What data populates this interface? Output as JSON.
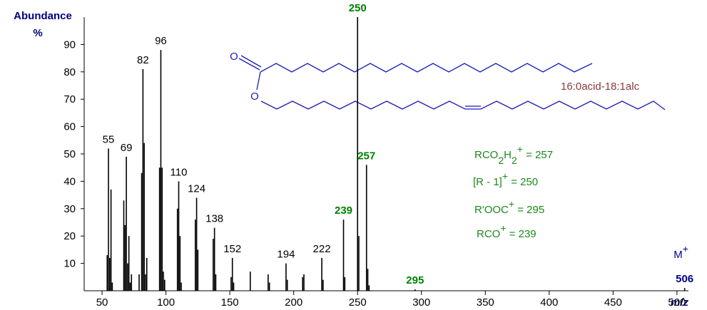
{
  "chart_data": {
    "type": "spectrum",
    "y_label": "Abundance",
    "y_unit": "%",
    "x_label": "m/z",
    "xlim": [
      36,
      509
    ],
    "xticks": [
      50,
      100,
      150,
      200,
      250,
      300,
      350,
      400,
      450,
      500
    ],
    "ylim": [
      0,
      100
    ],
    "yticks": [
      10,
      20,
      30,
      40,
      50,
      60,
      70,
      80,
      90
    ],
    "color": "#000000",
    "x": [
      54,
      55,
      56,
      57,
      58,
      67,
      68,
      69,
      70,
      71,
      72,
      73,
      79,
      81,
      82,
      83,
      84,
      85,
      95,
      96,
      97,
      98,
      99,
      109,
      110,
      111,
      112,
      123,
      124,
      125,
      137,
      138,
      139,
      151,
      152,
      153,
      166,
      180,
      181,
      194,
      195,
      207,
      208,
      222,
      223,
      239,
      240,
      250,
      251,
      257,
      258,
      259,
      295,
      506
    ],
    "values": [
      13,
      52,
      12,
      37,
      3,
      33,
      24,
      49,
      10,
      20,
      3,
      6,
      6,
      43,
      81,
      54,
      6,
      12,
      45,
      88,
      45,
      7,
      4,
      30,
      40,
      20,
      3,
      26,
      34,
      15,
      19,
      23,
      6,
      5,
      12,
      3,
      7,
      6,
      3,
      10,
      4,
      5,
      6,
      12,
      4,
      26,
      5,
      100,
      20,
      46,
      8,
      2,
      0.5,
      1
    ],
    "label_colors": [
      null,
      "#000000",
      null,
      null,
      null,
      null,
      null,
      "#000000",
      null,
      null,
      null,
      null,
      null,
      null,
      "#000000",
      null,
      null,
      null,
      null,
      "#000000",
      null,
      null,
      null,
      null,
      "#000000",
      null,
      null,
      null,
      "#000000",
      null,
      null,
      "#000000",
      null,
      null,
      "#000000",
      null,
      null,
      null,
      null,
      "#000000",
      null,
      null,
      null,
      "#000000",
      null,
      "#008000",
      null,
      "#008000",
      null,
      "#008000",
      null,
      null,
      "#008000",
      "#00008b"
    ],
    "molecular_ion": [
      {
        "text": "M"
      },
      {
        "text": "+",
        "style": "sup"
      }
    ],
    "structure": {
      "atoms": [
        "O",
        "O"
      ],
      "name": "16:0acid-18:1alc"
    },
    "annotations": [
      [
        {
          "text": "RCO"
        },
        {
          "text": "2",
          "style": "sub"
        },
        {
          "text": "H"
        },
        {
          "text": "2",
          "style": "sub"
        },
        {
          "text": "+",
          "style": "sup"
        },
        {
          "text": " = 257"
        }
      ],
      [
        {
          "text": "[R - 1]"
        },
        {
          "text": "+",
          "style": "sup"
        },
        {
          "text": " = 250"
        }
      ],
      [
        {
          "text": "R'OOC"
        },
        {
          "text": "+",
          "style": "sup"
        },
        {
          "text": " = 295"
        }
      ],
      [
        {
          "text": "RCO"
        },
        {
          "text": "+",
          "style": "sup"
        },
        {
          "text": " = 239"
        }
      ]
    ],
    "annotation_color": "#1a8a1a"
  }
}
